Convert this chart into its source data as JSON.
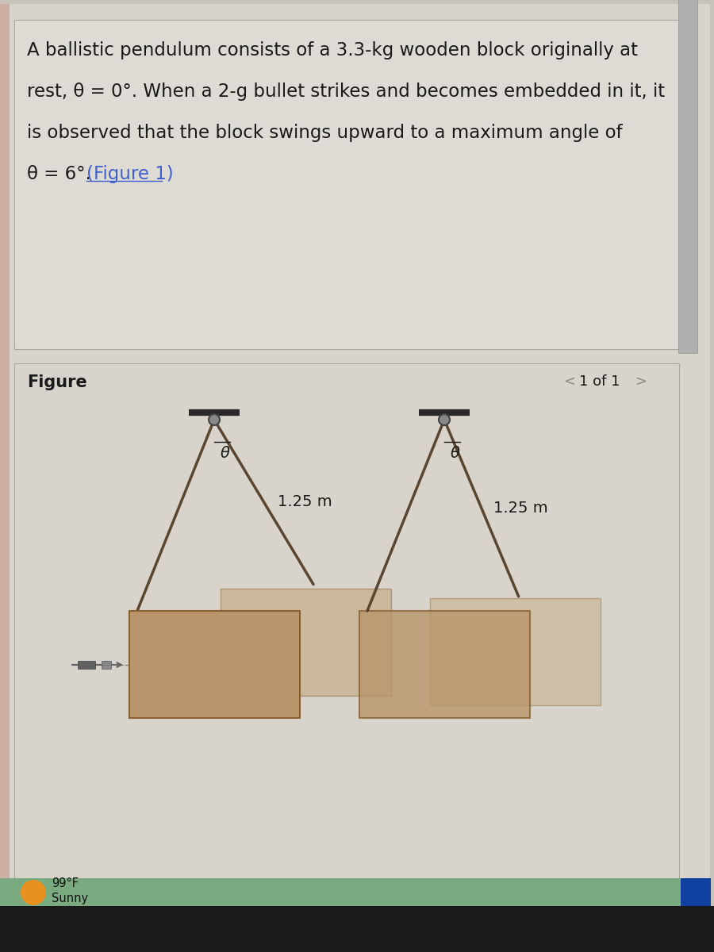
{
  "bg_color": "#c8c4bc",
  "page_bg": "#d8d4cc",
  "text_box_color": "#dedad4",
  "fig_box_color": "#d8d4cc",
  "line1": "A ballistic pendulum consists of a 3.3-kg wooden block originally at",
  "line2": "rest, θ = 0°. When a 2-g bullet strikes and becomes embedded in it, it",
  "line3": "is observed that the block swings upward to a maximum angle of",
  "line4_a": "θ = 6°. ",
  "line4_b": "(Figure 1)",
  "figure_label": "Figure",
  "page_nav": "1 of 1",
  "length_label": "1.25 m",
  "angle_label": "θ",
  "text_color": "#1a1a1a",
  "link_color": "#4060cc",
  "rope_color": "#5a4530",
  "block_color_main": "#b8956a",
  "block_color_shadow": "#c0a070",
  "block_edge_color": "#8a6030",
  "support_bar_color": "#2a2a2a",
  "pivot_ring_color": "#444444",
  "pivot_ring_inner": "#888888",
  "bullet_color": "#606060",
  "bullet_line_color": "#707070",
  "bottom_bar_color": "#7aaa80",
  "sun_color": "#e89020",
  "weather_text": "#111111",
  "scrollbar_bg": "#b0b0b0",
  "scrollbar_handle": "#888888",
  "taskbar_blue": "#1040a0",
  "nav_arrow_color": "#888888",
  "scan_line_color": "#b8b4ac",
  "left_edge_color": "#c0796a"
}
